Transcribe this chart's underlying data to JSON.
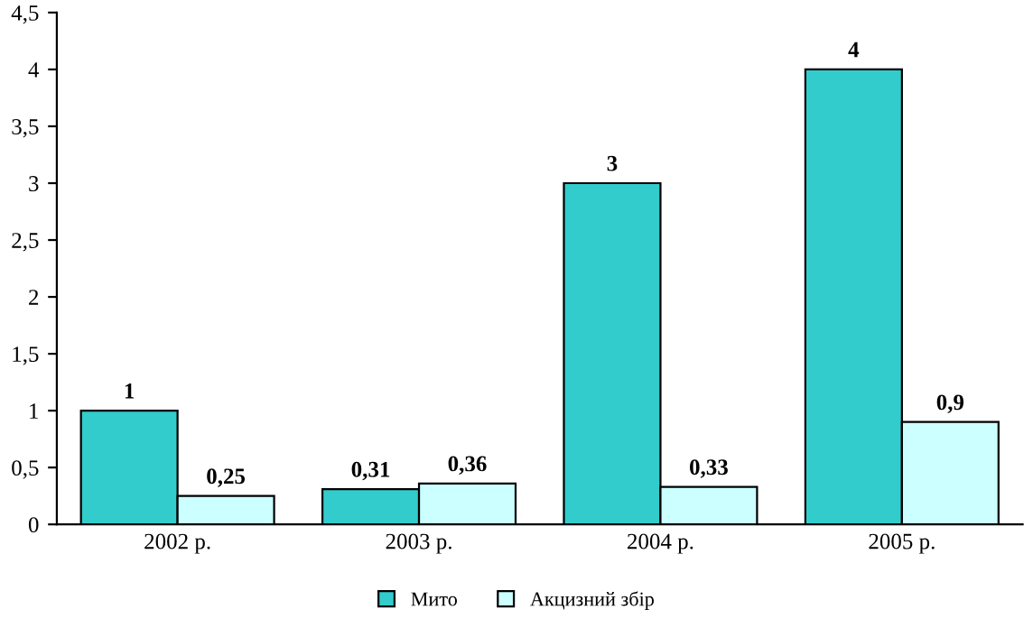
{
  "chart_data": {
    "type": "bar",
    "categories": [
      "2002 р.",
      "2003 р.",
      "2004 р.",
      "2005 р."
    ],
    "series": [
      {
        "name": "Мито",
        "color": "#33cccc",
        "values": [
          1,
          0.31,
          3,
          4
        ],
        "value_labels": [
          "1",
          "0,31",
          "3",
          "4"
        ]
      },
      {
        "name": "Акцизний збір",
        "color": "#ccffff",
        "values": [
          0.25,
          0.36,
          0.33,
          0.9
        ],
        "value_labels": [
          "0,25",
          "0,36",
          "0,33",
          "0,9"
        ]
      }
    ],
    "ylim": [
      0,
      4.5
    ],
    "yticks": [
      0,
      {
        "value": 0.5,
        "label": "0,5"
      },
      1,
      {
        "value": 1.5,
        "label": "1,5"
      },
      2,
      {
        "value": 2.5,
        "label": "2,5"
      },
      3,
      {
        "value": 3.5,
        "label": "3,5"
      },
      4,
      {
        "value": 4.5,
        "label": "4,5"
      }
    ],
    "grid": false,
    "legend": "bottom"
  }
}
